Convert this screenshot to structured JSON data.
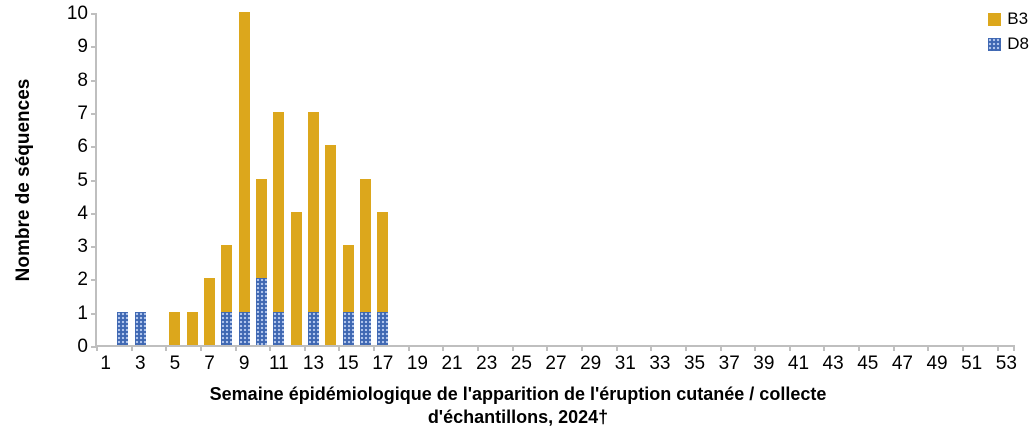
{
  "chart_data": {
    "type": "bar",
    "stacked": true,
    "title": "",
    "ylabel": "Nombre de séquences",
    "xlabel_line1": "Semaine épidémiologique de l'apparition de l'éruption cutanée / collecte",
    "xlabel_line2": "d'échantillons, 2024†",
    "x_domain": [
      1,
      53
    ],
    "x_tick_labels": [
      "1",
      "3",
      "5",
      "7",
      "9",
      "11",
      "13",
      "15",
      "17",
      "19",
      "21",
      "23",
      "25",
      "27",
      "29",
      "31",
      "33",
      "35",
      "37",
      "39",
      "41",
      "43",
      "45",
      "47",
      "49",
      "51",
      "53"
    ],
    "ylim": [
      0,
      10
    ],
    "y_ticks": [
      0,
      1,
      2,
      3,
      4,
      5,
      6,
      7,
      8,
      9,
      10
    ],
    "grid": false,
    "legend_position": "top-right",
    "legend": [
      {
        "name": "B3",
        "color": "#DCA71C",
        "pattern": "solid"
      },
      {
        "name": "D8",
        "color": "#3E67B2",
        "pattern": "dots"
      }
    ],
    "series_order_bottom_to_top": [
      "D8",
      "B3"
    ],
    "data": [
      {
        "week": 2,
        "B3": 0,
        "D8": 1
      },
      {
        "week": 3,
        "B3": 0,
        "D8": 1
      },
      {
        "week": 5,
        "B3": 1,
        "D8": 0
      },
      {
        "week": 6,
        "B3": 1,
        "D8": 0
      },
      {
        "week": 7,
        "B3": 2,
        "D8": 0
      },
      {
        "week": 8,
        "B3": 2,
        "D8": 1
      },
      {
        "week": 9,
        "B3": 9,
        "D8": 1
      },
      {
        "week": 10,
        "B3": 3,
        "D8": 2
      },
      {
        "week": 11,
        "B3": 6,
        "D8": 1
      },
      {
        "week": 12,
        "B3": 4,
        "D8": 0
      },
      {
        "week": 13,
        "B3": 6,
        "D8": 1
      },
      {
        "week": 14,
        "B3": 6,
        "D8": 0
      },
      {
        "week": 15,
        "B3": 2,
        "D8": 1
      },
      {
        "week": 16,
        "B3": 4,
        "D8": 1
      },
      {
        "week": 17,
        "B3": 3,
        "D8": 1
      }
    ]
  }
}
